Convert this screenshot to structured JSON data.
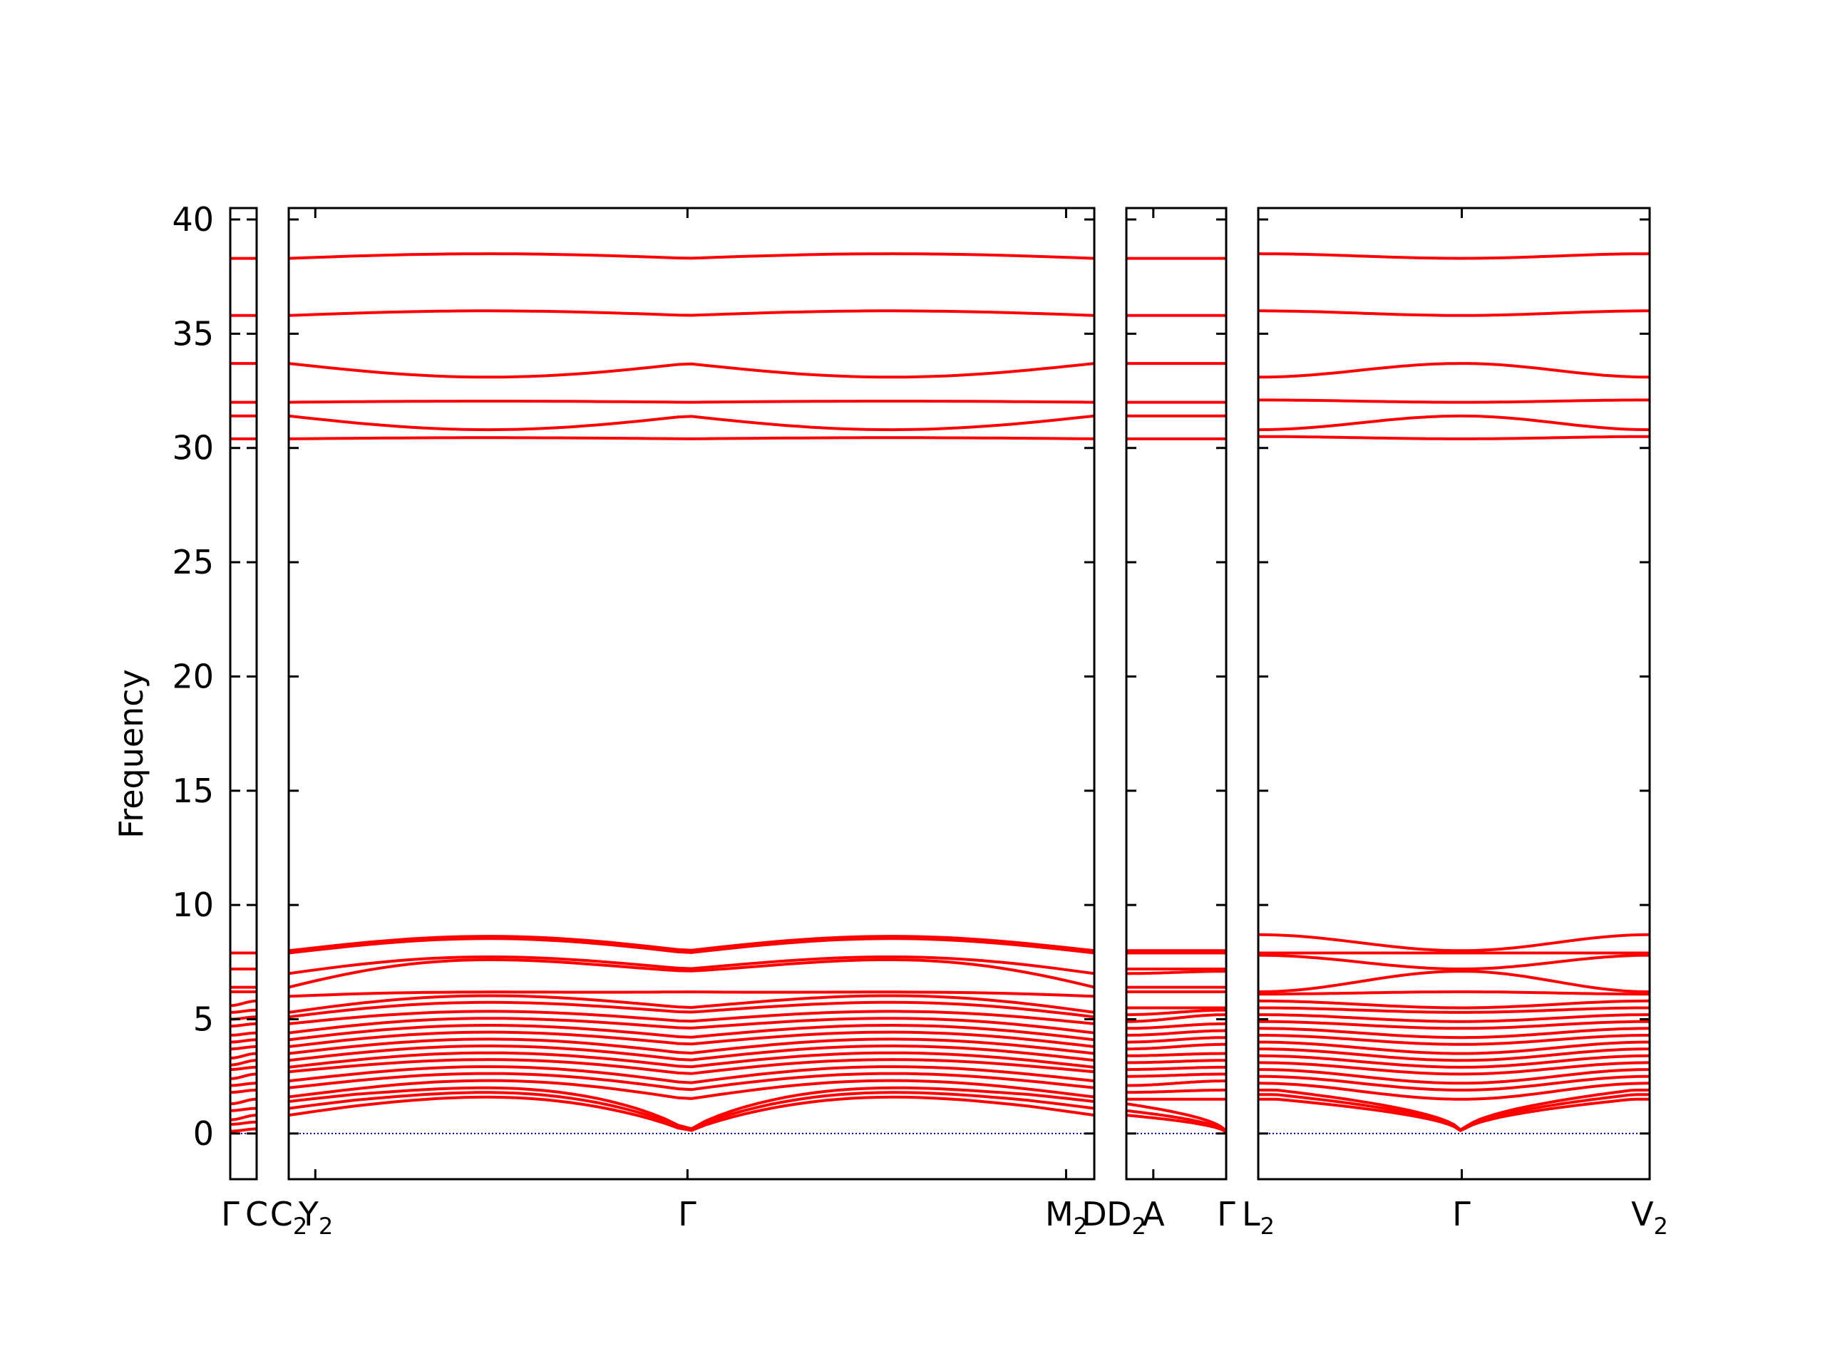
{
  "chart_data": {
    "type": "line",
    "title": "",
    "xlabel": "",
    "ylabel": "Frequency",
    "ylim": [
      -2,
      40.5
    ],
    "y_ticks": [
      "0",
      "5",
      "10",
      "15",
      "20",
      "25",
      "30",
      "35",
      "40"
    ],
    "grid": false,
    "legend": "none",
    "line_color": "#ff0000",
    "zero_line_color": "#0000aa",
    "panels": [
      {
        "id": "panel-1",
        "x_labels": [
          {
            "label": "Γ",
            "sub": ""
          },
          {
            "label": "C",
            "sub": ""
          }
        ],
        "x_range": [
          0,
          1
        ],
        "bands_start": [
          0.1,
          0.4,
          0.6,
          1.0,
          1.3,
          1.8,
          2.1,
          2.4,
          2.8,
          3.0,
          3.3,
          3.7,
          4.0,
          4.3,
          4.7,
          5.0,
          5.3,
          5.6,
          6.2,
          6.4,
          7.2,
          7.9,
          30.4,
          31.4,
          32.0,
          33.7,
          35.8,
          38.3
        ],
        "bands_end": [
          0.2,
          0.5,
          0.8,
          1.1,
          1.5,
          1.9,
          2.2,
          2.6,
          2.9,
          3.2,
          3.5,
          3.8,
          4.1,
          4.4,
          4.8,
          5.1,
          5.4,
          5.8,
          6.2,
          6.4,
          7.2,
          7.9,
          30.4,
          31.4,
          32.0,
          33.7,
          35.8,
          38.3
        ]
      },
      {
        "id": "panel-2",
        "x_labels": [
          {
            "label": "C",
            "sub": "2"
          },
          {
            "label": "Y",
            "sub": "2"
          },
          {
            "label": "Γ",
            "sub": ""
          },
          {
            "label": "M",
            "sub": "2"
          },
          {
            "label": "D",
            "sub": ""
          }
        ],
        "x_range": [
          0,
          1
        ],
        "tick_positions": [
          0.0,
          0.033,
          0.495,
          0.965,
          1.0
        ],
        "gamma_position": 0.495,
        "high_bands": [
          {
            "at_gamma": 30.4,
            "at_ends": 30.4,
            "bulge": 30.45
          },
          {
            "at_gamma": 31.4,
            "at_ends": 31.4,
            "bulge": 30.8
          },
          {
            "at_gamma": 32.0,
            "at_ends": 32.0,
            "bulge": 32.05
          },
          {
            "at_gamma": 33.7,
            "at_ends": 33.7,
            "bulge": 33.1
          },
          {
            "at_gamma": 35.8,
            "at_ends": 35.8,
            "bulge": 36.0
          },
          {
            "at_gamma": 38.3,
            "at_ends": 38.3,
            "bulge": 38.5
          }
        ],
        "low_bands_at_gamma": [
          0.0,
          0.0,
          0.0,
          1.5,
          1.9,
          2.2,
          2.6,
          2.9,
          3.2,
          3.5,
          3.9,
          4.2,
          4.6,
          4.9,
          5.3,
          5.5,
          6.2,
          7.1,
          7.2,
          7.9,
          8.0
        ],
        "low_bands_at_ends": [
          0.8,
          1.1,
          1.4,
          1.6,
          2.0,
          2.3,
          2.7,
          2.9,
          3.2,
          3.5,
          3.8,
          4.1,
          4.4,
          4.8,
          5.1,
          5.3,
          6.0,
          6.4,
          7.0,
          7.9,
          8.0
        ],
        "low_bands_bulge": [
          1.7,
          1.9,
          2.1,
          2.4,
          2.7,
          3.0,
          3.3,
          3.6,
          3.9,
          4.2,
          4.5,
          4.8,
          5.1,
          5.4,
          5.8,
          6.1,
          6.2,
          7.7,
          7.8,
          8.6,
          8.7
        ]
      },
      {
        "id": "panel-3",
        "x_labels": [
          {
            "label": "D",
            "sub": "2"
          },
          {
            "label": "A",
            "sub": ""
          },
          {
            "label": "Γ",
            "sub": ""
          }
        ],
        "x_range": [
          0,
          1
        ],
        "tick_positions": [
          0.0,
          0.27,
          1.0
        ],
        "bands_start": [
          0.8,
          1.0,
          1.3,
          1.5,
          1.8,
          2.1,
          2.5,
          2.8,
          3.1,
          3.4,
          3.7,
          4.0,
          4.3,
          4.6,
          4.9,
          5.2,
          5.5,
          6.2,
          6.4,
          7.0,
          7.2,
          7.9,
          8.0,
          30.4,
          31.4,
          32.0,
          33.7,
          35.8,
          38.3
        ],
        "bands_end": [
          0.0,
          0.0,
          0.0,
          1.5,
          1.9,
          2.3,
          2.6,
          2.9,
          3.2,
          3.5,
          3.9,
          4.2,
          4.5,
          4.8,
          5.2,
          5.4,
          5.5,
          6.2,
          6.4,
          7.1,
          7.2,
          7.9,
          8.0,
          30.4,
          31.4,
          32.0,
          33.7,
          35.8,
          38.3
        ]
      },
      {
        "id": "panel-4",
        "x_labels": [
          {
            "label": "L",
            "sub": "2"
          },
          {
            "label": "Γ",
            "sub": ""
          },
          {
            "label": "V",
            "sub": "2"
          }
        ],
        "x_range": [
          0,
          1
        ],
        "tick_positions": [
          0.0,
          0.52,
          1.0
        ],
        "gamma_position": 0.52,
        "high_at_ends": [
          30.5,
          30.8,
          32.1,
          33.1,
          36.0,
          38.5
        ],
        "high_at_gamma": [
          30.4,
          31.4,
          32.0,
          33.7,
          35.8,
          38.3
        ],
        "low_at_ends": [
          1.5,
          1.7,
          1.9,
          2.2,
          2.5,
          2.8,
          3.1,
          3.4,
          3.7,
          4.0,
          4.3,
          4.6,
          4.9,
          5.2,
          5.5,
          5.8,
          6.1,
          6.2,
          7.8,
          7.9,
          8.7
        ],
        "low_at_gamma": [
          0.0,
          0.0,
          0.0,
          1.5,
          1.9,
          2.2,
          2.6,
          2.9,
          3.2,
          3.5,
          3.9,
          4.2,
          4.6,
          4.9,
          5.3,
          5.5,
          6.2,
          7.1,
          7.2,
          7.9,
          8.0
        ]
      }
    ]
  }
}
